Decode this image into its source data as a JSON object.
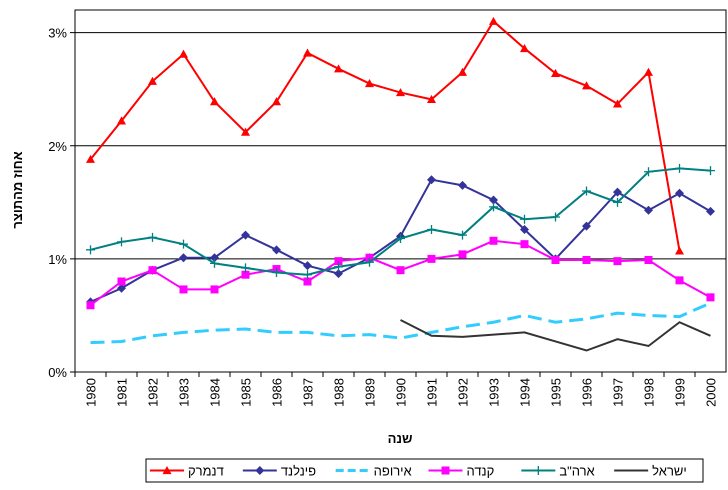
{
  "chart_data": {
    "type": "line",
    "y_label": "אחוז מהתוצר",
    "x_label": "שנה",
    "categories": [
      "1980",
      "1981",
      "1982",
      "1983",
      "1984",
      "1985",
      "1986",
      "1987",
      "1988",
      "1989",
      "1990",
      "1991",
      "1992",
      "1993",
      "1994",
      "1995",
      "1996",
      "1997",
      "1998",
      "1999",
      "2000"
    ],
    "ylim": [
      0,
      3.2
    ],
    "yticks": [
      {
        "value": 0,
        "label": "0%"
      },
      {
        "value": 1,
        "label": "1%"
      },
      {
        "value": 2,
        "label": "2%"
      },
      {
        "value": 3,
        "label": "3%"
      }
    ],
    "grid": true,
    "legend": "bottom",
    "series": [
      {
        "name": "דנמרק",
        "color": "#ff0000",
        "marker": "triangle",
        "values": [
          1.88,
          2.22,
          2.57,
          2.81,
          2.39,
          2.12,
          2.39,
          2.82,
          2.68,
          2.55,
          2.47,
          2.41,
          2.65,
          3.1,
          2.86,
          2.64,
          2.53,
          2.37,
          2.65,
          1.07,
          null
        ]
      },
      {
        "name": "פינלנד",
        "color": "#333399",
        "marker": "diamond",
        "values": [
          0.62,
          0.74,
          0.9,
          1.01,
          1.01,
          1.21,
          1.08,
          0.94,
          0.87,
          1.01,
          1.2,
          1.7,
          1.65,
          1.52,
          1.26,
          1.0,
          1.29,
          1.59,
          1.43,
          1.58,
          1.42
        ]
      },
      {
        "name": "אירופה",
        "color": "#33ccff",
        "dash": true,
        "values": [
          0.26,
          0.27,
          0.32,
          0.35,
          0.37,
          0.38,
          0.35,
          0.35,
          0.32,
          0.33,
          0.3,
          0.35,
          0.4,
          0.44,
          0.5,
          0.44,
          0.47,
          0.52,
          0.5,
          0.49,
          0.61
        ]
      },
      {
        "name": "קנדה",
        "color": "#ff00ff",
        "marker": "square",
        "values": [
          0.59,
          0.8,
          0.9,
          0.73,
          0.73,
          0.86,
          0.91,
          0.8,
          0.98,
          1.01,
          0.9,
          1.0,
          1.04,
          1.16,
          1.13,
          0.99,
          0.99,
          0.98,
          0.99,
          0.81,
          0.66
        ]
      },
      {
        "name": "ארה\"ב",
        "color": "#008080",
        "marker": "plus",
        "values": [
          1.08,
          1.15,
          1.19,
          1.13,
          0.96,
          0.92,
          0.88,
          0.86,
          0.93,
          0.97,
          1.18,
          1.26,
          1.21,
          1.46,
          1.35,
          1.37,
          1.6,
          1.5,
          1.77,
          1.8,
          1.78
        ]
      },
      {
        "name": "ישראל",
        "color": "#333333",
        "values": [
          null,
          null,
          null,
          null,
          null,
          null,
          null,
          null,
          null,
          null,
          0.46,
          0.32,
          0.31,
          0.33,
          0.35,
          0.27,
          0.19,
          0.29,
          0.23,
          0.44,
          0.32
        ]
      }
    ]
  }
}
